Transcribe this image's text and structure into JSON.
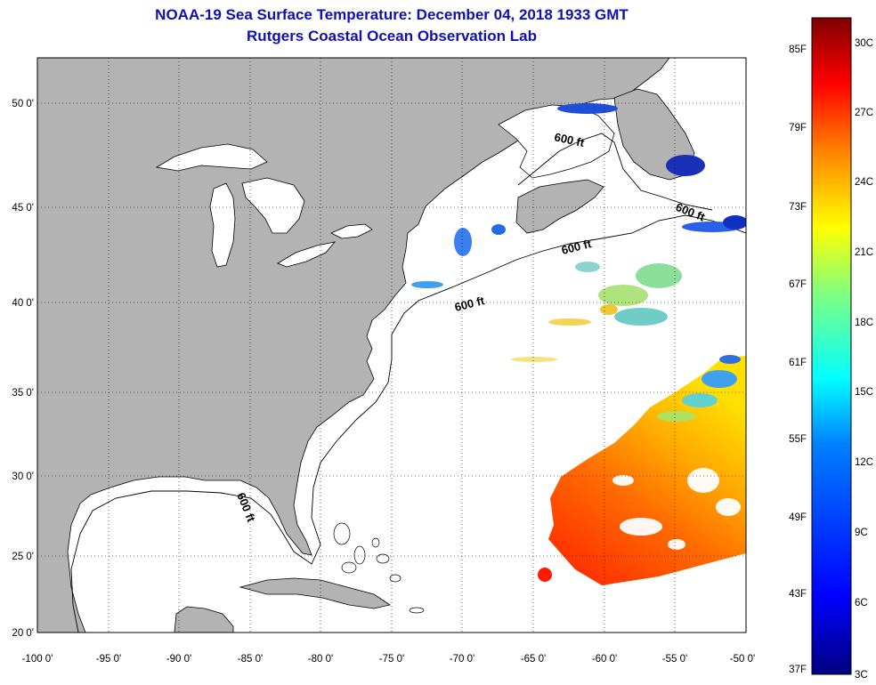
{
  "title": "NOAA-19 Sea Surface Temperature:  December 04, 2018 1933 GMT",
  "subtitle": "Rutgers Coastal Ocean Observation Lab",
  "map": {
    "lon_range": [
      -100,
      -50
    ],
    "lat_range": [
      20,
      52
    ],
    "lat_ticks": [
      "50 0'",
      "45 0'",
      "40 0'",
      "35 0'",
      "30 0'",
      "25 0'",
      "20 0'"
    ],
    "lon_ticks": [
      "-100 0'",
      "-95 0'",
      "-90 0'",
      "-85 0'",
      "-80 0'",
      "-75 0'",
      "-70 0'",
      "-65 0'",
      "-60 0'",
      "-55 0'",
      "-50 0'"
    ],
    "isobath_label": "600 ft",
    "land_color": "#b3b3b3",
    "ocean_color": "#ffffff"
  },
  "colorbar": {
    "fahrenheit_labels": [
      "85F",
      "79F",
      "73F",
      "67F",
      "61F",
      "55F",
      "49F",
      "43F",
      "37F"
    ],
    "celsius_labels": [
      "30C",
      "27C",
      "24C",
      "21C",
      "18C",
      "15C",
      "12C",
      "9C",
      "6C",
      "3C"
    ],
    "colors": [
      "#800000",
      "#ff0000",
      "#ff8000",
      "#ffff00",
      "#80ff80",
      "#00ffff",
      "#0080ff",
      "#0000ff",
      "#000080"
    ]
  }
}
